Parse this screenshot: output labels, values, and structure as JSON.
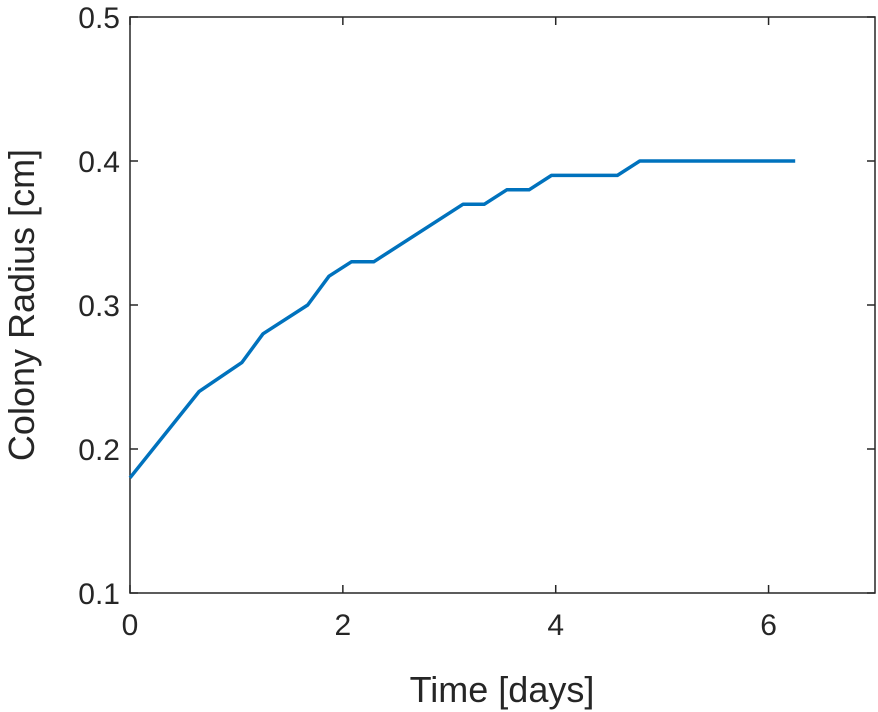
{
  "chart_data": {
    "type": "line",
    "title": "",
    "xlabel": "Time [days]",
    "ylabel": "Colony Radius [cm]",
    "xlim": [
      0,
      7
    ],
    "ylim": [
      0.1,
      0.5
    ],
    "xticks": [
      0,
      2,
      4,
      6
    ],
    "yticks": [
      0.1,
      0.2,
      0.3,
      0.4,
      0.5
    ],
    "xtick_labels": [
      "0",
      "2",
      "4",
      "6"
    ],
    "ytick_labels": [
      "0.1",
      "0.2",
      "0.3",
      "0.4",
      "0.5"
    ],
    "grid": false,
    "legend": "none",
    "series": [
      {
        "color": "#0072BD",
        "x": [
          0,
          0.65,
          1.05,
          1.25,
          1.67,
          1.87,
          2.08,
          2.29,
          3.13,
          3.33,
          3.54,
          3.75,
          3.96,
          4.58,
          4.79,
          6.25
        ],
        "y": [
          0.18,
          0.24,
          0.26,
          0.28,
          0.3,
          0.32,
          0.33,
          0.33,
          0.37,
          0.37,
          0.38,
          0.38,
          0.39,
          0.39,
          0.4,
          0.4
        ]
      }
    ]
  }
}
